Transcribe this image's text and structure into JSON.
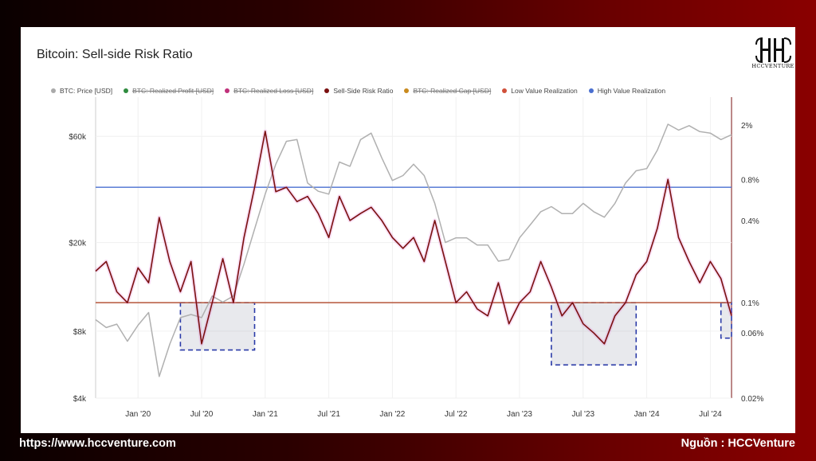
{
  "card": {
    "title": "Bitcoin: Sell-side Risk Ratio",
    "logo_text": "HCCVENTURE"
  },
  "footer": {
    "website": "https://www.hccventure.com",
    "source": "Nguồn : HCCVenture"
  },
  "chart_data": {
    "type": "line",
    "title": "Bitcoin: Sell-side Risk Ratio",
    "legend": [
      {
        "name": "BTC: Price [USD]",
        "color": "#aaaaaa",
        "struck": false
      },
      {
        "name": "BTC: Realized Profit [USD]",
        "color": "#2e8b3e",
        "struck": true
      },
      {
        "name": "BTC: Realized Loss [USD]",
        "color": "#c0307a",
        "struck": true
      },
      {
        "name": "Sell-Side Risk Ratio",
        "color": "#7a1010",
        "struck": false
      },
      {
        "name": "BTC: Realized Cap [USD]",
        "color": "#c98a1e",
        "struck": true
      },
      {
        "name": "Low Value Realization",
        "color": "#d0503a",
        "struck": false
      },
      {
        "name": "High Value Realization",
        "color": "#4a6fd0",
        "struck": false
      }
    ],
    "legend_position": "top",
    "x_ticks": [
      "Jan '20",
      "Jul '20",
      "Jan '21",
      "Jul '21",
      "Jan '22",
      "Jul '22",
      "Jan '23",
      "Jul '23",
      "Jan '24",
      "Jul '24"
    ],
    "y_left_ticks": [
      "$60k",
      "$20k",
      "$8k",
      "$4k"
    ],
    "y_left_values": [
      60000,
      20000,
      8000,
      4000
    ],
    "y_left_range": [
      4000,
      90000
    ],
    "y_left_scale": "log",
    "y_right_ticks": [
      "2%",
      "0.8%",
      "0.4%",
      "0.1%",
      "0.06%",
      "0.02%"
    ],
    "y_right_values": [
      2,
      0.8,
      0.4,
      0.1,
      0.06,
      0.02
    ],
    "y_right_range": [
      0.02,
      3.2
    ],
    "y_right_scale": "log",
    "x_range": [
      "2019-09",
      "2024-09"
    ],
    "grid": true,
    "thresholds": [
      {
        "name": "High Value Realization",
        "value": 0.7,
        "color": "#4a6fd0"
      },
      {
        "name": "Low Value Realization",
        "value": 0.1,
        "color": "#b5553a"
      }
    ],
    "highlight_zones": [
      {
        "x_start": "2020-05",
        "x_end": "2020-12",
        "y_top": 0.1,
        "y_bottom": 0.045
      },
      {
        "x_start": "2023-04",
        "x_end": "2023-12",
        "y_top": 0.1,
        "y_bottom": 0.035
      },
      {
        "x_start": "2024-08",
        "x_end": "2024-09",
        "y_top": 0.1,
        "y_bottom": 0.055
      }
    ],
    "series": [
      {
        "name": "BTC: Price [USD]",
        "axis": "left",
        "x": [
          "2019-09",
          "2019-10",
          "2019-11",
          "2019-12",
          "2020-01",
          "2020-02",
          "2020-03",
          "2020-04",
          "2020-05",
          "2020-06",
          "2020-07",
          "2020-08",
          "2020-09",
          "2020-10",
          "2020-11",
          "2020-12",
          "2021-01",
          "2021-02",
          "2021-03",
          "2021-04",
          "2021-05",
          "2021-06",
          "2021-07",
          "2021-08",
          "2021-09",
          "2021-10",
          "2021-11",
          "2021-12",
          "2022-01",
          "2022-02",
          "2022-03",
          "2022-04",
          "2022-05",
          "2022-06",
          "2022-07",
          "2022-08",
          "2022-09",
          "2022-10",
          "2022-11",
          "2022-12",
          "2023-01",
          "2023-02",
          "2023-03",
          "2023-04",
          "2023-05",
          "2023-06",
          "2023-07",
          "2023-08",
          "2023-09",
          "2023-10",
          "2023-11",
          "2023-12",
          "2024-01",
          "2024-02",
          "2024-03",
          "2024-04",
          "2024-05",
          "2024-06",
          "2024-07",
          "2024-08",
          "2024-09"
        ],
        "values": [
          9000,
          8300,
          8600,
          7200,
          8500,
          9700,
          5000,
          7000,
          9200,
          9500,
          9200,
          11500,
          10800,
          11500,
          16000,
          23000,
          33000,
          45000,
          57000,
          58000,
          37000,
          34000,
          33000,
          46000,
          44000,
          58000,
          62000,
          48000,
          38000,
          40000,
          45000,
          40000,
          30000,
          20000,
          21000,
          21000,
          19500,
          19500,
          16500,
          16800,
          21000,
          24000,
          27500,
          29000,
          27000,
          27000,
          30000,
          27500,
          26000,
          30000,
          37000,
          42000,
          43000,
          52000,
          68000,
          64000,
          67000,
          63000,
          62000,
          58000,
          61000
        ]
      },
      {
        "name": "Sell-Side Risk Ratio",
        "axis": "right",
        "x": [
          "2019-09",
          "2019-10",
          "2019-11",
          "2019-12",
          "2020-01",
          "2020-02",
          "2020-03",
          "2020-04",
          "2020-05",
          "2020-06",
          "2020-07",
          "2020-08",
          "2020-09",
          "2020-10",
          "2020-11",
          "2020-12",
          "2021-01",
          "2021-02",
          "2021-03",
          "2021-04",
          "2021-05",
          "2021-06",
          "2021-07",
          "2021-08",
          "2021-09",
          "2021-10",
          "2021-11",
          "2021-12",
          "2022-01",
          "2022-02",
          "2022-03",
          "2022-04",
          "2022-05",
          "2022-06",
          "2022-07",
          "2022-08",
          "2022-09",
          "2022-10",
          "2022-11",
          "2022-12",
          "2023-01",
          "2023-02",
          "2023-03",
          "2023-04",
          "2023-05",
          "2023-06",
          "2023-07",
          "2023-08",
          "2023-09",
          "2023-10",
          "2023-11",
          "2023-12",
          "2024-01",
          "2024-02",
          "2024-03",
          "2024-04",
          "2024-05",
          "2024-06",
          "2024-07",
          "2024-08",
          "2024-09"
        ],
        "values": [
          0.17,
          0.2,
          0.12,
          0.1,
          0.18,
          0.14,
          0.42,
          0.2,
          0.12,
          0.2,
          0.05,
          0.1,
          0.21,
          0.1,
          0.3,
          0.7,
          1.8,
          0.65,
          0.7,
          0.55,
          0.6,
          0.45,
          0.3,
          0.6,
          0.4,
          0.45,
          0.5,
          0.4,
          0.3,
          0.25,
          0.3,
          0.2,
          0.4,
          0.2,
          0.1,
          0.12,
          0.09,
          0.08,
          0.14,
          0.07,
          0.1,
          0.12,
          0.2,
          0.13,
          0.08,
          0.1,
          0.07,
          0.06,
          0.05,
          0.08,
          0.1,
          0.16,
          0.2,
          0.35,
          0.8,
          0.3,
          0.2,
          0.14,
          0.2,
          0.15,
          0.08
        ]
      }
    ]
  }
}
